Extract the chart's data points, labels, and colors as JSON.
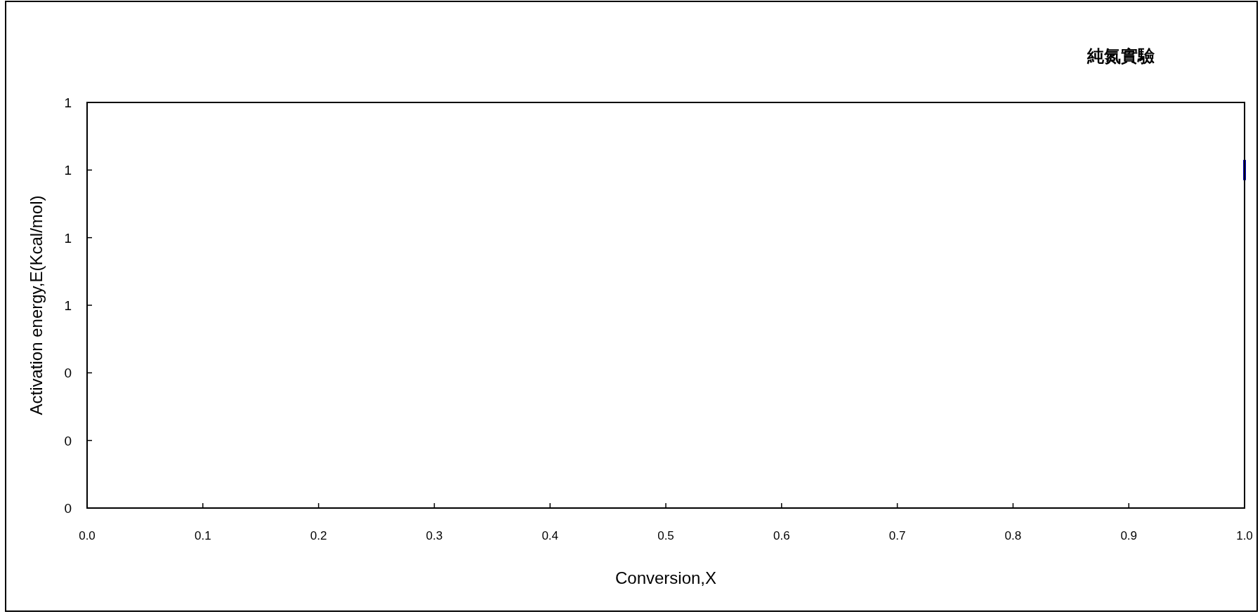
{
  "chart_data": {
    "type": "line",
    "title": "純氮實驗",
    "xlabel": "Conversion,X",
    "ylabel": "Activation energy,E(Kcal/mol)",
    "series": [
      {
        "color": "#0000c0",
        "x": [
          1.0,
          1.0
        ],
        "values": [
          1.03,
          0.97
        ]
      }
    ],
    "xlim": [
      0,
      1
    ],
    "xticks": [
      {
        "value": 0,
        "label": "0.0"
      },
      {
        "value": 0.1,
        "label": "0.1"
      },
      {
        "value": 0.2,
        "label": "0.2"
      },
      {
        "value": 0.3,
        "label": "0.3"
      },
      {
        "value": 0.4,
        "label": "0.4"
      },
      {
        "value": 0.5,
        "label": "0.5"
      },
      {
        "value": 0.6,
        "label": "0.6"
      },
      {
        "value": 0.7,
        "label": "0.7"
      },
      {
        "value": 0.8,
        "label": "0.8"
      },
      {
        "value": 0.9,
        "label": "0.9"
      },
      {
        "value": 1.0,
        "label": "1.0"
      }
    ],
    "ylim": [
      0,
      1.2
    ],
    "yticks": [
      {
        "value": 0,
        "label": "0"
      },
      {
        "value": 0.2,
        "label": "0"
      },
      {
        "value": 0.4,
        "label": "0"
      },
      {
        "value": 0.6,
        "label": "1"
      },
      {
        "value": 0.8,
        "label": "1"
      },
      {
        "value": 1.0,
        "label": "1"
      },
      {
        "value": 1.2,
        "label": "1"
      }
    ],
    "line_style": "solid"
  }
}
